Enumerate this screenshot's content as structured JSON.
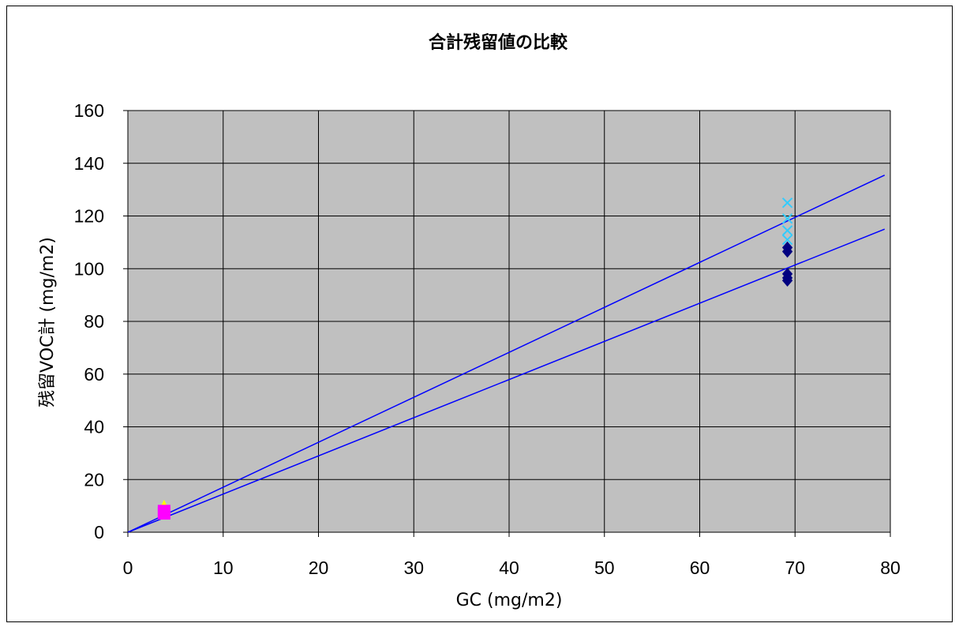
{
  "chart_data": {
    "type": "scatter",
    "title": "合計残留値の比較",
    "xlabel": "GC (mg/m2)",
    "ylabel": "残留VOC計 (mg/m2)",
    "xlim": [
      0,
      80
    ],
    "ylim": [
      0,
      160
    ],
    "x_ticks": [
      0,
      10,
      20,
      30,
      40,
      50,
      60,
      70,
      80
    ],
    "y_ticks": [
      0,
      20,
      40,
      60,
      80,
      100,
      120,
      140,
      160
    ],
    "grid": true,
    "legend": "none",
    "plot_background": "#c0c0c0",
    "series": [
      {
        "marker": "diamond",
        "color": "#000080",
        "points": [
          [
            69.2,
            108
          ],
          [
            69.2,
            106.5
          ],
          [
            69.2,
            98
          ],
          [
            69.2,
            96.5
          ],
          [
            69.2,
            95.5
          ]
        ]
      },
      {
        "marker": "x",
        "color": "#33ccff",
        "points": [
          [
            69.2,
            125
          ],
          [
            69.2,
            119
          ],
          [
            69.2,
            114.5
          ],
          [
            69.2,
            111
          ]
        ]
      },
      {
        "marker": "triangle",
        "color": "#ffff00",
        "points": [
          [
            3.8,
            10.5
          ]
        ]
      },
      {
        "marker": "square",
        "color": "#ff00ff",
        "points": [
          [
            3.8,
            8
          ],
          [
            3.8,
            7.2
          ]
        ]
      }
    ],
    "lines": [
      {
        "color": "#0000ff",
        "x": [
          0,
          79.4
        ],
        "y": [
          0,
          135.5
        ]
      },
      {
        "color": "#0000ff",
        "x": [
          0,
          79.4
        ],
        "y": [
          0,
          115
        ]
      }
    ]
  }
}
